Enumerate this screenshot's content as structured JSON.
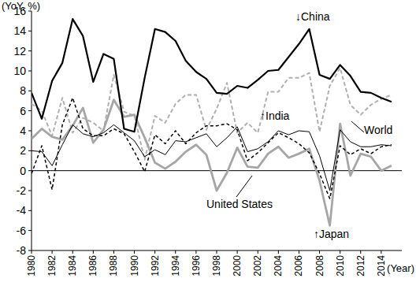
{
  "chart_data": {
    "type": "line",
    "y_label": "(YoY, %)",
    "x_label": "(Year)",
    "x": [
      1980,
      1981,
      1982,
      1983,
      1984,
      1985,
      1986,
      1987,
      1988,
      1989,
      1990,
      1991,
      1992,
      1993,
      1994,
      1995,
      1996,
      1997,
      1998,
      1999,
      2000,
      2001,
      2002,
      2003,
      2004,
      2005,
      2006,
      2007,
      2008,
      2009,
      2010,
      2011,
      2012,
      2013,
      2014,
      2015
    ],
    "xlim": [
      1980,
      2016
    ],
    "xticks": [
      1980,
      1982,
      1984,
      1986,
      1988,
      1990,
      1992,
      1994,
      1996,
      1998,
      2000,
      2002,
      2004,
      2006,
      2008,
      2010,
      2012,
      2014
    ],
    "ylim": [
      -8,
      16
    ],
    "yticks": [
      -8,
      -6,
      -4,
      -2,
      0,
      2,
      4,
      6,
      8,
      10,
      12,
      14,
      16
    ],
    "grid": false,
    "series": [
      {
        "name": "↓China",
        "color": "#000000",
        "line_style": "solid",
        "values": [
          7.8,
          5.2,
          9.0,
          10.8,
          15.2,
          13.5,
          8.9,
          11.7,
          11.2,
          4.2,
          3.9,
          9.3,
          14.2,
          13.9,
          13.0,
          11.0,
          9.9,
          9.2,
          7.8,
          7.7,
          8.5,
          8.3,
          9.1,
          10.0,
          10.1,
          11.4,
          12.7,
          14.2,
          9.6,
          9.2,
          10.6,
          9.5,
          7.9,
          7.8,
          7.3,
          6.9
        ]
      },
      {
        "name": "↑India",
        "color": "#b0b0b0",
        "line_style": "dashed",
        "values": [
          6.7,
          6.0,
          3.5,
          7.3,
          3.8,
          5.3,
          4.8,
          4.0,
          9.6,
          5.9,
          5.5,
          1.1,
          5.5,
          4.8,
          6.7,
          7.6,
          7.6,
          4.1,
          6.2,
          8.8,
          3.8,
          4.8,
          3.8,
          7.9,
          7.9,
          9.3,
          9.3,
          9.8,
          3.9,
          8.5,
          10.3,
          6.6,
          5.6,
          6.6,
          7.2,
          7.6
        ]
      },
      {
        "name": "World",
        "color": "#000000",
        "line_style": "thin",
        "values": [
          2.0,
          1.9,
          0.5,
          2.6,
          4.6,
          3.7,
          3.4,
          3.8,
          4.6,
          3.8,
          3.0,
          1.4,
          2.1,
          1.6,
          3.0,
          2.9,
          3.3,
          3.7,
          2.4,
          3.3,
          4.4,
          1.9,
          2.2,
          2.9,
          4.0,
          3.6,
          4.0,
          3.9,
          1.5,
          -2.0,
          4.1,
          2.9,
          2.4,
          2.4,
          2.6,
          2.5
        ]
      },
      {
        "name": "United States",
        "color": "#000000",
        "line_style": "dashed",
        "values": [
          -0.3,
          2.5,
          -1.9,
          4.6,
          7.3,
          4.2,
          3.5,
          3.5,
          4.2,
          3.7,
          1.9,
          -0.1,
          3.6,
          2.7,
          4.0,
          2.7,
          3.8,
          4.5,
          4.5,
          4.7,
          4.1,
          1.0,
          1.8,
          2.8,
          3.8,
          3.3,
          2.7,
          1.8,
          -0.3,
          -2.8,
          2.5,
          1.6,
          2.2,
          1.7,
          2.4,
          2.6
        ]
      },
      {
        "name": "↑Japan",
        "color": "#a6a6a6",
        "line_style": "solid",
        "values": [
          3.2,
          4.2,
          3.4,
          3.1,
          4.5,
          6.3,
          2.8,
          4.1,
          7.1,
          5.4,
          5.6,
          3.3,
          0.8,
          0.2,
          0.9,
          1.9,
          2.6,
          1.6,
          -2.0,
          -0.2,
          2.3,
          0.4,
          0.3,
          1.7,
          2.4,
          1.3,
          1.7,
          2.2,
          -1.0,
          -5.5,
          4.7,
          -0.5,
          1.7,
          1.4,
          0.0,
          0.5
        ]
      }
    ]
  }
}
